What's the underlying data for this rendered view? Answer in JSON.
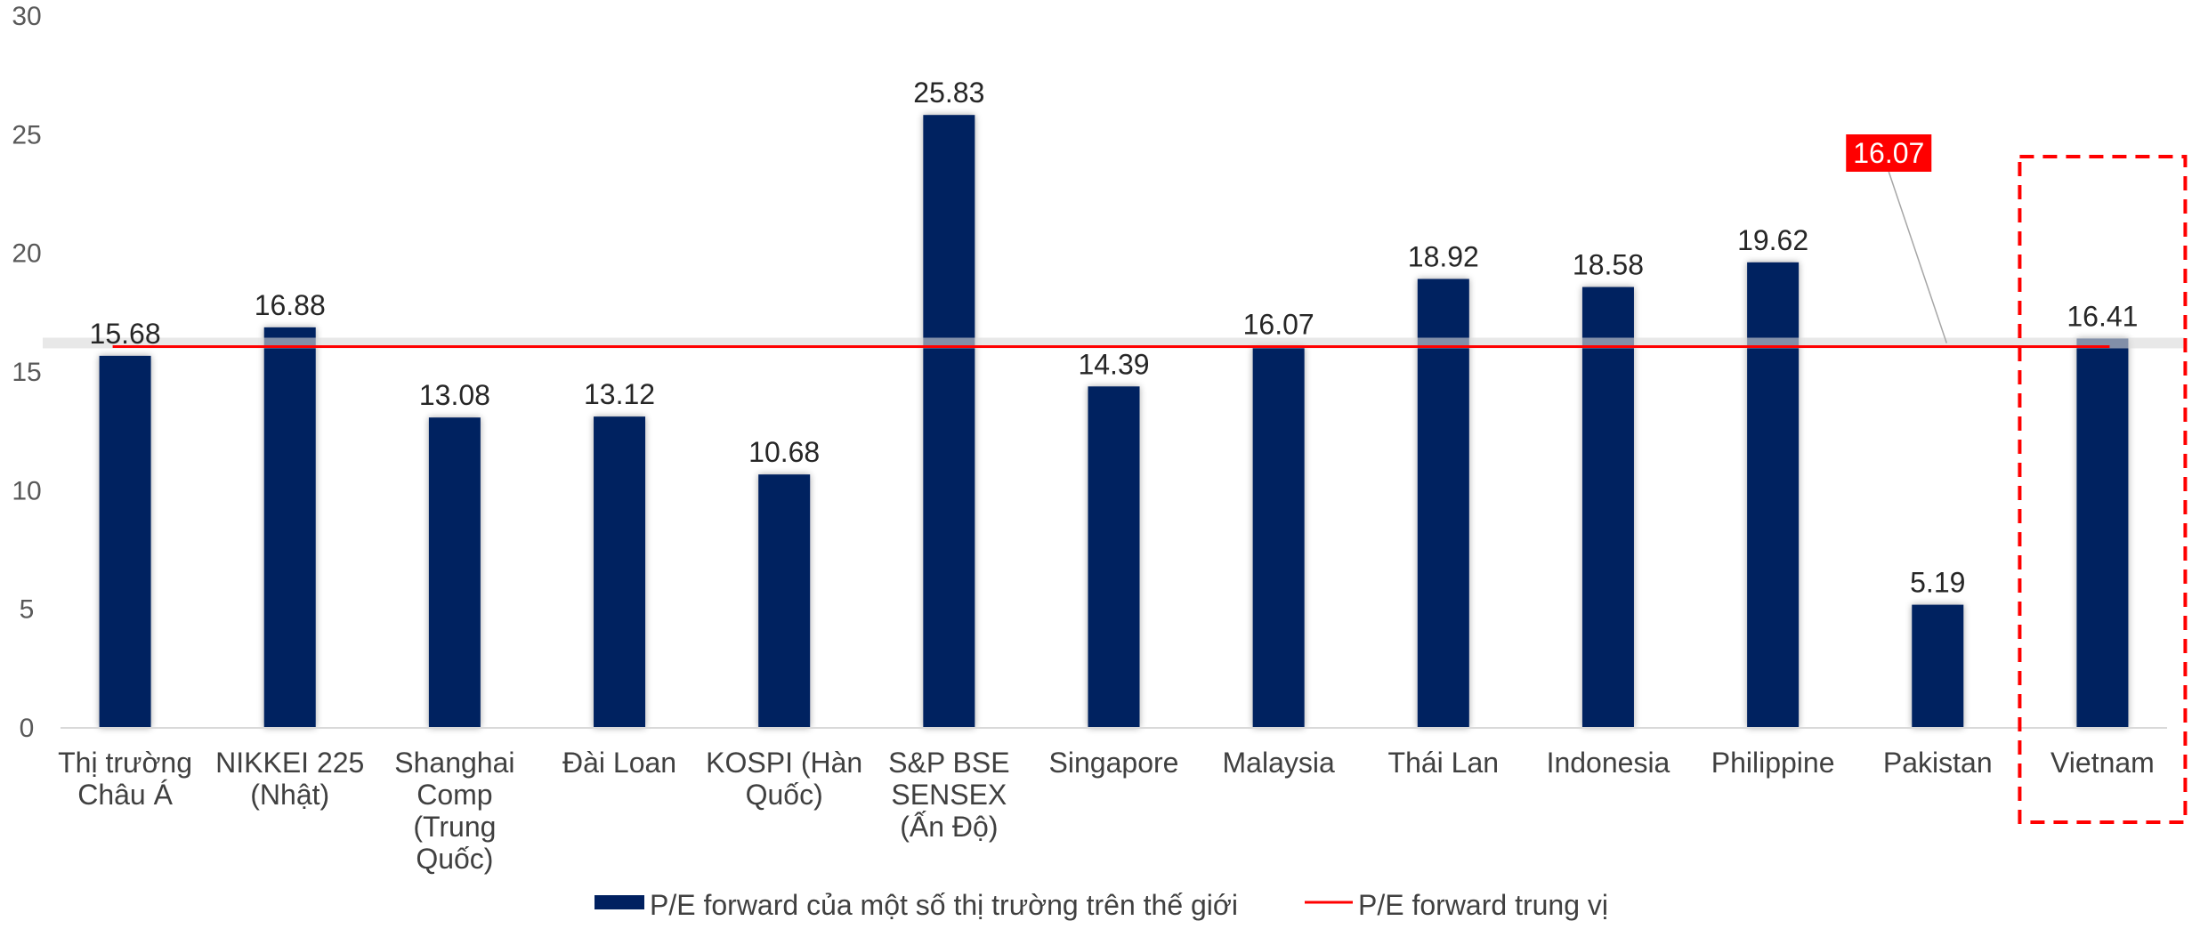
{
  "chart_data": {
    "type": "bar",
    "title": "",
    "xlabel": "",
    "ylabel": "",
    "ylim": [
      0,
      30
    ],
    "yticks": [
      0,
      5,
      10,
      15,
      20,
      25,
      30
    ],
    "grid": false,
    "legend_position": "bottom",
    "categories": [
      [
        "Thị trường",
        "Châu Á"
      ],
      [
        "NIKKEI 225",
        "(Nhật)"
      ],
      [
        "Shanghai",
        "Comp",
        "(Trung",
        "Quốc)"
      ],
      [
        "Đài Loan"
      ],
      [
        "KOSPI (Hàn",
        "Quốc)"
      ],
      [
        "S&P BSE",
        "SENSEX",
        "(Ấn Độ)"
      ],
      [
        "Singapore"
      ],
      [
        "Malaysia"
      ],
      [
        "Thái Lan"
      ],
      [
        "Indonesia"
      ],
      [
        "Philippine"
      ],
      [
        "Pakistan"
      ],
      [
        "Vietnam"
      ]
    ],
    "series": [
      {
        "name": "P/E forward của một số thị trường trên thế giới",
        "type": "bar",
        "color": "#002060",
        "values": [
          15.68,
          16.88,
          13.08,
          13.12,
          10.68,
          25.83,
          14.39,
          16.07,
          18.92,
          18.58,
          19.62,
          5.19,
          16.41
        ]
      },
      {
        "name": "P/E forward trung vị",
        "type": "line",
        "color": "#ff0000",
        "value": 16.07
      }
    ],
    "annotations": [
      {
        "text": "16.07",
        "type": "callout",
        "target_series": "P/E forward trung vị",
        "background": "#ff0000"
      }
    ],
    "highlight": {
      "category": "Vietnam",
      "style": "dashed-box",
      "color": "#ff0000"
    }
  }
}
